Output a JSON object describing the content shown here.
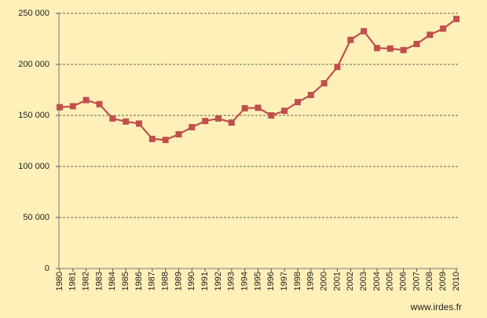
{
  "chart_data": {
    "type": "line",
    "categories": [
      "1980",
      "1981",
      "1982",
      "1983",
      "1984",
      "1985",
      "1986",
      "1987",
      "1988",
      "1989",
      "1990",
      "1991",
      "1992",
      "1993",
      "1994",
      "1995",
      "1996",
      "1997",
      "1998",
      "1999",
      "2000",
      "2001",
      "2002",
      "2003",
      "2004",
      "2005",
      "2006",
      "2007",
      "2008",
      "2009",
      "2010"
    ],
    "series": [
      {
        "color": "#c0504d",
        "values": [
          158000,
          159000,
          165000,
          161000,
          147000,
          144000,
          142000,
          127000,
          126000,
          131500,
          138500,
          144500,
          147000,
          143000,
          157000,
          157500,
          150000,
          154500,
          163000,
          170000,
          181500,
          197500,
          224000,
          232500,
          216000,
          215500,
          214000,
          220000,
          229000,
          235000,
          244500
        ]
      }
    ],
    "ylim": [
      0,
      250000
    ],
    "yticks": [
      0,
      {
        "value": 50000,
        "label": "50 000"
      },
      {
        "value": 100000,
        "label": "100 000"
      },
      {
        "value": 150000,
        "label": "150 000"
      },
      {
        "value": 200000,
        "label": "200 000"
      },
      {
        "value": 250000,
        "label": "250 000"
      }
    ],
    "grid": true,
    "source": "www.irdes.fr"
  }
}
